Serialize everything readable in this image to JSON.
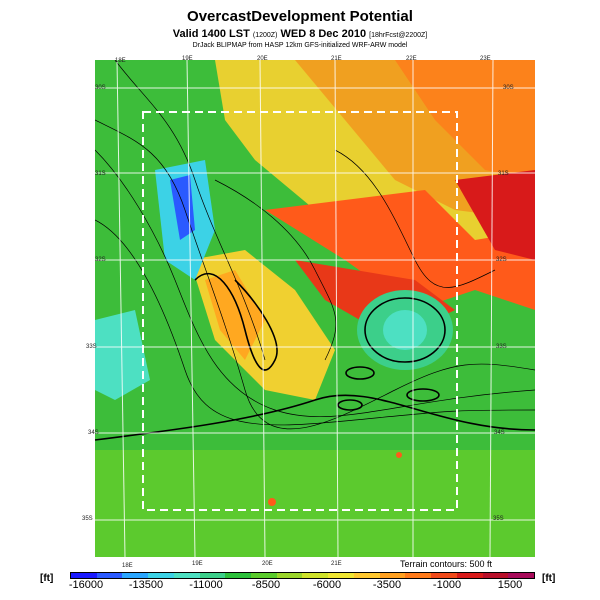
{
  "title": "OvercastDevelopment Potential",
  "valid_prefix": "Valid 1400 LST",
  "valid_small1": "(1200Z)",
  "valid_date": "WED 8 Dec 2010",
  "valid_small2": "[18hrFcst@2200Z]",
  "credit": "DrJack BLIPMAP from HASP 12km GFS-initialized WRF-ARW model",
  "terrain_note": "Terrain contours: 500 ft",
  "unit_left": "[ft]",
  "unit_right": "[ft]",
  "longitude_labels_top": [
    "18E",
    "19E",
    "20E",
    "21E",
    "22E",
    "23E"
  ],
  "longitude_labels_bottom": [
    "18E",
    "19E",
    "20E",
    "21E"
  ],
  "latitude_labels_left": [
    "30S",
    "31S",
    "32S",
    "33S",
    "34S",
    "35S"
  ],
  "latitude_labels_right": [
    "30S",
    "31S",
    "32S",
    "33S",
    "34S",
    "35S"
  ],
  "colorbar_ticks": [
    "-16000",
    "-13500",
    "-11000",
    "-8500",
    "-6000",
    "-3500",
    "-1000",
    "1500"
  ],
  "colorbar_colors": [
    "#1a1aff",
    "#2a5aff",
    "#2aa6ff",
    "#3cd2e6",
    "#4de0c2",
    "#3ccf8a",
    "#2bbf3a",
    "#5acb2c",
    "#9bd52a",
    "#cfe22a",
    "#f0e632",
    "#ffc830",
    "#ffa020",
    "#ff7a1a",
    "#f04a1a",
    "#d81a1a",
    "#b8102a",
    "#a80a5a"
  ]
}
